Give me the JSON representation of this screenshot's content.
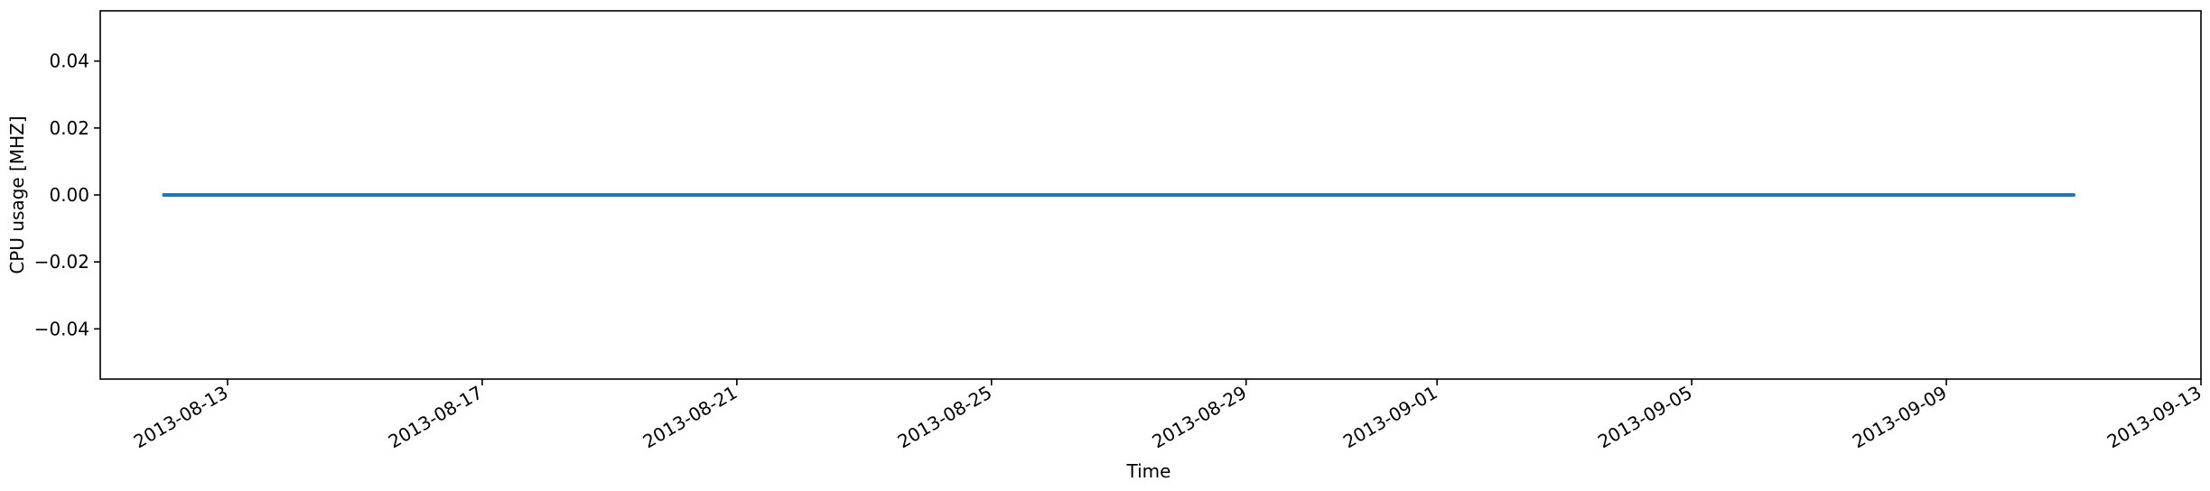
{
  "chart_data": {
    "type": "line",
    "title": "",
    "xlabel": "Time",
    "ylabel": "CPU usage [MHZ]",
    "x_type": "date",
    "xlim": [
      "2013-08-11",
      "2013-09-13"
    ],
    "ylim": [
      -0.055,
      0.055
    ],
    "x_ticks": [
      "2013-08-13",
      "2013-08-17",
      "2013-08-21",
      "2013-08-25",
      "2013-08-29",
      "2013-09-01",
      "2013-09-05",
      "2013-09-09",
      "2013-09-13"
    ],
    "y_ticks": [
      -0.04,
      -0.02,
      0.0,
      0.02,
      0.04
    ],
    "y_tick_labels": [
      "−0.04",
      "−0.02",
      "0.00",
      "0.02",
      "0.04"
    ],
    "grid": false,
    "legend": "none",
    "series": [
      {
        "color": "#1f77b4",
        "x": [
          "2013-08-12",
          "2013-08-16",
          "2013-08-20",
          "2013-08-24",
          "2013-08-28",
          "2013-09-01",
          "2013-09-05",
          "2013-09-09",
          "2013-09-11"
        ],
        "y": [
          0,
          0,
          0,
          0,
          0,
          0,
          0,
          0,
          0
        ]
      }
    ]
  }
}
